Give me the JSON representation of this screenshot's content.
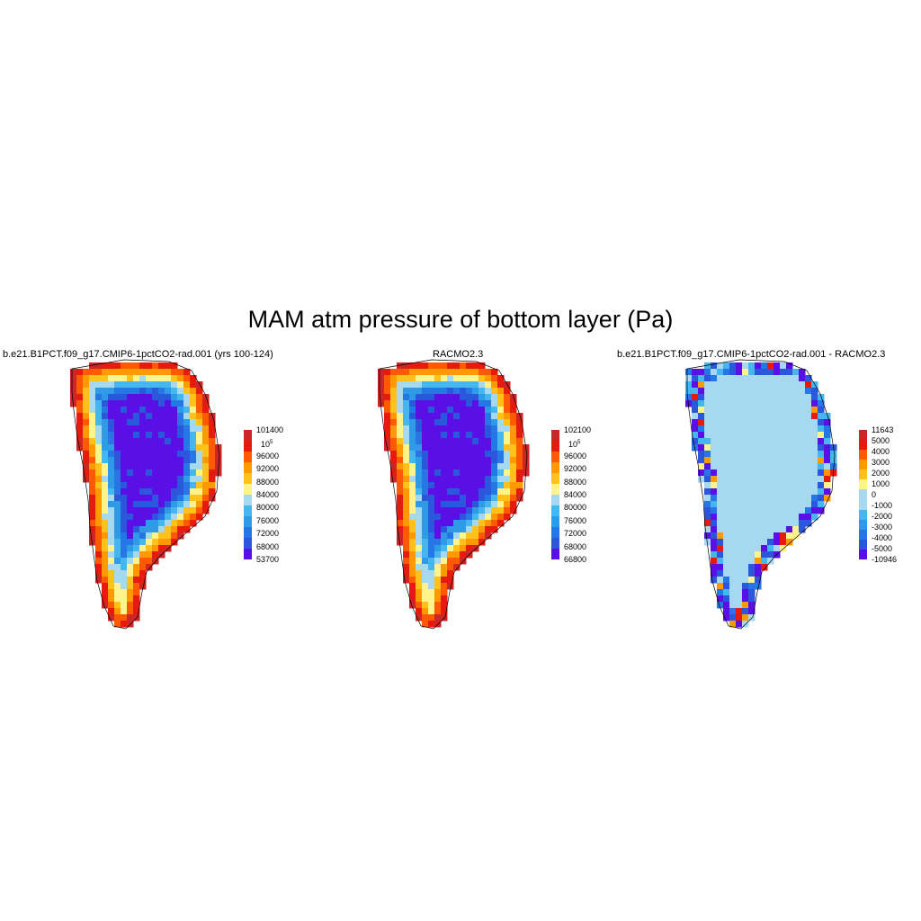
{
  "title": "MAM atm pressure of bottom layer (Pa)",
  "panels": [
    {
      "title": "b.e21.B1PCT.f09_g17.CMIP6-1pctCO2-rad.001 (yrs 100-124)",
      "type": "field",
      "colorbar": {
        "colors": [
          "#5a0fe6",
          "#2b57dd",
          "#2676e6",
          "#2f9be6",
          "#45b7ee",
          "#a6d8ef",
          "#fff38c",
          "#ffc21a",
          "#ff9900",
          "#ff5a00",
          "#e61a0f",
          "#cc2626"
        ],
        "labels": [
          "53700",
          "68000",
          "72000",
          "76000",
          "80000",
          "84000",
          "88000",
          "92000",
          "96000",
          "10^5",
          "101400"
        ]
      }
    },
    {
      "title": "RACMO2.3",
      "type": "field",
      "colorbar": {
        "colors": [
          "#5a0fe6",
          "#2b57dd",
          "#2676e6",
          "#2f9be6",
          "#45b7ee",
          "#a6d8ef",
          "#fff38c",
          "#ffc21a",
          "#ff9900",
          "#ff5a00",
          "#e61a0f",
          "#cc2626"
        ],
        "labels": [
          "66800",
          "68000",
          "72000",
          "76000",
          "80000",
          "84000",
          "88000",
          "92000",
          "96000",
          "10^5",
          "102100"
        ]
      }
    },
    {
      "title": "b.e21.B1PCT.f09_g17.CMIP6-1pctCO2-rad.001 - RACMO2.3",
      "type": "diff",
      "colorbar": {
        "colors": [
          "#5a0fe6",
          "#2b57dd",
          "#2676e6",
          "#2f9be6",
          "#45b7ee",
          "#a6d8ef",
          "#a6d8ef",
          "#fff38c",
          "#ffc21a",
          "#ff9900",
          "#ff5a00",
          "#e61a0f",
          "#cc2626"
        ],
        "labels": [
          "-10946",
          "-5000",
          "-4000",
          "-3000",
          "-2000",
          "-1000",
          "0",
          "1000",
          "2000",
          "3000",
          "4000",
          "5000",
          "11643"
        ]
      }
    }
  ]
}
